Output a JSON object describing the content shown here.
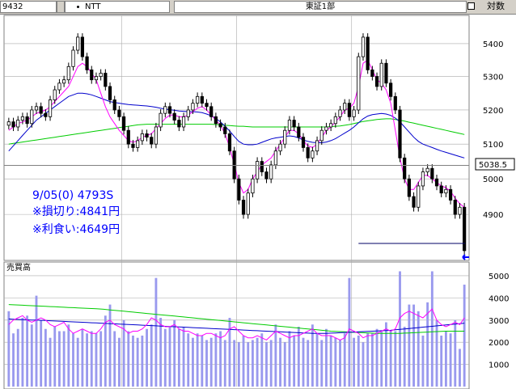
{
  "toolbar": {
    "code": "9432",
    "name": "NTT",
    "market": "東証1部",
    "mode": "対数"
  },
  "annotations": {
    "line1": "9/05(0) 4793S",
    "line2": "※損切り:4841円",
    "line3": "※利食い:4649円"
  },
  "price_marker": "5038.5",
  "volume_label": "売買高",
  "colors": {
    "candle": "#000000",
    "ma_short": "#ff00ff",
    "ma_mid": "#0000cc",
    "ma_long": "#00cc00",
    "volume_bar": "#9999ee",
    "annotation": "#0000ff",
    "grid": "#aaaaaa"
  },
  "chart_data": [
    {
      "type": "candlestick",
      "title": "",
      "y_scale": "log",
      "ylim": [
        4780,
        5480
      ],
      "yticks": [
        4900,
        5000,
        5100,
        5200,
        5300,
        5400
      ],
      "reference_price": 5038.5,
      "stop_loss": 4841,
      "take_profit": 4649,
      "close": [
        5165,
        5150,
        5170,
        5180,
        5160,
        5200,
        5210,
        5190,
        5180,
        5230,
        5260,
        5280,
        5290,
        5330,
        5380,
        5420,
        5360,
        5320,
        5290,
        5300,
        5310,
        5270,
        5230,
        5200,
        5180,
        5140,
        5100,
        5090,
        5110,
        5130,
        5120,
        5100,
        5150,
        5190,
        5210,
        5190,
        5170,
        5150,
        5180,
        5200,
        5220,
        5240,
        5220,
        5210,
        5180,
        5160,
        5150,
        5130,
        5080,
        5000,
        4940,
        4900,
        4960,
        5000,
        5050,
        5020,
        5000,
        5040,
        5080,
        5100,
        5140,
        5170,
        5150,
        5120,
        5090,
        5060,
        5080,
        5110,
        5140,
        5150,
        5160,
        5180,
        5200,
        5220,
        5180,
        5200,
        5360,
        5420,
        5320,
        5300,
        5270,
        5340,
        5280,
        5240,
        5200,
        5060,
        5000,
        4950,
        4920,
        4980,
        5020,
        5030,
        5000,
        4980,
        4960,
        4970,
        4940,
        4900,
        4920,
        4800
      ],
      "ma_short": [
        5140,
        5150,
        5160,
        5165,
        5170,
        5180,
        5190,
        5195,
        5200,
        5210,
        5225,
        5240,
        5255,
        5270,
        5300,
        5330,
        5340,
        5330,
        5310,
        5290,
        5250,
        5210,
        5180,
        5160,
        5140,
        5125,
        5110,
        5105,
        5110,
        5120,
        5125,
        5130,
        5145,
        5160,
        5175,
        5185,
        5185,
        5180,
        5180,
        5185,
        5195,
        5205,
        5210,
        5200,
        5185,
        5170,
        5155,
        5130,
        5090,
        5040,
        4990,
        4960,
        4970,
        5000,
        5020,
        5040,
        5050,
        5060,
        5080,
        5100,
        5120,
        5140,
        5140,
        5130,
        5110,
        5095,
        5090,
        5100,
        5120,
        5140,
        5150,
        5165,
        5180,
        5200,
        5205,
        5220,
        5270,
        5340,
        5350,
        5320,
        5290,
        5280,
        5260,
        5220,
        5140,
        5060,
        5000,
        4970,
        4970,
        4990,
        5010,
        5010,
        5000,
        4990,
        4980,
        4975,
        4965,
        4945,
        4930,
        4920
      ],
      "ma_mid": [
        5080,
        5095,
        5110,
        5125,
        5140,
        5155,
        5170,
        5180,
        5190,
        5200,
        5210,
        5220,
        5230,
        5240,
        5245,
        5250,
        5250,
        5248,
        5245,
        5240,
        5235,
        5230,
        5225,
        5222,
        5220,
        5218,
        5216,
        5215,
        5214,
        5213,
        5212,
        5210,
        5208,
        5205,
        5203,
        5201,
        5199,
        5197,
        5196,
        5195,
        5195,
        5194,
        5192,
        5188,
        5183,
        5175,
        5165,
        5152,
        5138,
        5122,
        5108,
        5100,
        5098,
        5098,
        5100,
        5105,
        5110,
        5115,
        5118,
        5120,
        5122,
        5124,
        5122,
        5118,
        5112,
        5108,
        5105,
        5104,
        5104,
        5106,
        5110,
        5116,
        5124,
        5132,
        5140,
        5150,
        5162,
        5174,
        5182,
        5186,
        5188,
        5190,
        5188,
        5184,
        5176,
        5165,
        5150,
        5135,
        5120,
        5108,
        5100,
        5095,
        5090,
        5085,
        5080,
        5076,
        5072,
        5068,
        5064,
        5060
      ],
      "ma_long": [
        5100,
        5102,
        5104,
        5106,
        5108,
        5110,
        5112,
        5114,
        5116,
        5118,
        5120,
        5122,
        5124,
        5126,
        5128,
        5130,
        5132,
        5134,
        5136,
        5138,
        5140,
        5142,
        5144,
        5146,
        5148,
        5150,
        5152,
        5154,
        5156,
        5157,
        5158,
        5158,
        5158,
        5158,
        5158,
        5158,
        5158,
        5158,
        5158,
        5158,
        5158,
        5158,
        5158,
        5158,
        5158,
        5157,
        5156,
        5155,
        5154,
        5153,
        5152,
        5152,
        5151,
        5150,
        5150,
        5150,
        5150,
        5150,
        5150,
        5150,
        5150,
        5150,
        5150,
        5150,
        5150,
        5150,
        5150,
        5150,
        5150,
        5150,
        5151,
        5152,
        5153,
        5155,
        5157,
        5160,
        5163,
        5166,
        5168,
        5170,
        5172,
        5173,
        5174,
        5174,
        5172,
        5170,
        5167,
        5164,
        5161,
        5158,
        5155,
        5152,
        5149,
        5146,
        5143,
        5140,
        5137,
        5134,
        5131,
        5128
      ]
    },
    {
      "type": "bar",
      "title": "",
      "ylabel": "売買高",
      "ylim": [
        0,
        5400
      ],
      "yticks": [
        1000,
        2000,
        3000,
        4000,
        5000
      ],
      "values": [
        3400,
        2400,
        2600,
        3100,
        3200,
        2800,
        4100,
        3000,
        2600,
        2200,
        2700,
        2500,
        2500,
        2800,
        2400,
        2200,
        2600,
        2400,
        2500,
        2400,
        2500,
        3200,
        3700,
        2500,
        2200,
        3000,
        2500,
        2300,
        2200,
        2300,
        2600,
        2800,
        4900,
        3100,
        2600,
        2700,
        3000,
        2600,
        2700,
        2400,
        2200,
        2400,
        2300,
        2100,
        2200,
        2400,
        2500,
        2100,
        3100,
        2100,
        2000,
        2300,
        2000,
        2100,
        2200,
        2400,
        2000,
        2100,
        2800,
        2200,
        2000,
        2500,
        2300,
        2700,
        2200,
        2100,
        2800,
        2400,
        2100,
        2600,
        2300,
        2200,
        2100,
        2400,
        4900,
        2200,
        2300,
        2000,
        2400,
        2400,
        2600,
        2500,
        2900,
        2500,
        2500,
        5200,
        2700,
        3700,
        3700,
        3400,
        2300,
        3800,
        5200,
        3000,
        2300,
        2500,
        2400,
        3000,
        1700,
        4600
      ],
      "ma_short": [
        2800,
        3000,
        3100,
        3200,
        3000,
        2900,
        3000,
        3100,
        3000,
        2800,
        2700,
        2800,
        2900,
        2600,
        2400,
        2500,
        2600,
        2500,
        2400,
        2400,
        2600,
        2900,
        3000,
        2800,
        2700,
        2600,
        2400,
        2500,
        2500,
        2600,
        2800,
        3100,
        3000,
        2800,
        2700,
        2700,
        2800,
        2600,
        2500,
        2500,
        2400,
        2300,
        2300,
        2400,
        2400,
        2300,
        2200,
        2300,
        2600,
        2700,
        2500,
        2300,
        2200,
        2200,
        2300,
        2200,
        2100,
        2300,
        2500,
        2400,
        2300,
        2200,
        2300,
        2300,
        2400,
        2500,
        2600,
        2400,
        2300,
        2300,
        2300,
        2200,
        2100,
        2200,
        2600,
        2500,
        2400,
        2200,
        2300,
        2300,
        2400,
        2500,
        2600,
        2500,
        2600,
        3100,
        3300,
        3400,
        3300,
        3200,
        3100,
        3300,
        3500,
        3000,
        2800,
        2700,
        2800,
        2900,
        2800,
        3100
      ],
      "ma_mid": [
        3050,
        3040,
        3030,
        3020,
        3010,
        3000,
        3000,
        2990,
        2980,
        2970,
        2960,
        2950,
        2940,
        2930,
        2920,
        2910,
        2900,
        2890,
        2880,
        2870,
        2860,
        2850,
        2840,
        2830,
        2820,
        2810,
        2800,
        2790,
        2780,
        2770,
        2760,
        2750,
        2740,
        2730,
        2720,
        2710,
        2700,
        2690,
        2680,
        2670,
        2660,
        2650,
        2640,
        2630,
        2620,
        2610,
        2600,
        2590,
        2580,
        2570,
        2560,
        2550,
        2540,
        2530,
        2520,
        2510,
        2500,
        2490,
        2480,
        2470,
        2460,
        2450,
        2440,
        2430,
        2420,
        2410,
        2400,
        2400,
        2400,
        2400,
        2410,
        2420,
        2430,
        2440,
        2450,
        2460,
        2470,
        2480,
        2490,
        2500,
        2510,
        2520,
        2530,
        2540,
        2560,
        2580,
        2600,
        2620,
        2640,
        2660,
        2680,
        2700,
        2720,
        2740,
        2760,
        2780,
        2800,
        2820,
        2840,
        2860
      ],
      "ma_long": [
        3700,
        3690,
        3680,
        3670,
        3660,
        3650,
        3640,
        3630,
        3620,
        3610,
        3600,
        3590,
        3580,
        3570,
        3560,
        3550,
        3540,
        3530,
        3520,
        3510,
        3500,
        3480,
        3460,
        3440,
        3420,
        3400,
        3380,
        3360,
        3340,
        3320,
        3300,
        3280,
        3260,
        3240,
        3220,
        3200,
        3180,
        3160,
        3140,
        3120,
        3100,
        3080,
        3060,
        3040,
        3020,
        3000,
        2980,
        2960,
        2940,
        2920,
        2900,
        2880,
        2860,
        2840,
        2820,
        2800,
        2780,
        2760,
        2740,
        2720,
        2700,
        2680,
        2660,
        2640,
        2620,
        2600,
        2580,
        2560,
        2540,
        2520,
        2500,
        2490,
        2480,
        2470,
        2460,
        2450,
        2440,
        2430,
        2420,
        2410,
        2400,
        2400,
        2400,
        2400,
        2400,
        2400,
        2410,
        2420,
        2430,
        2440,
        2450,
        2460,
        2470,
        2480,
        2490,
        2500,
        2500,
        2500,
        2500,
        2500
      ]
    }
  ]
}
